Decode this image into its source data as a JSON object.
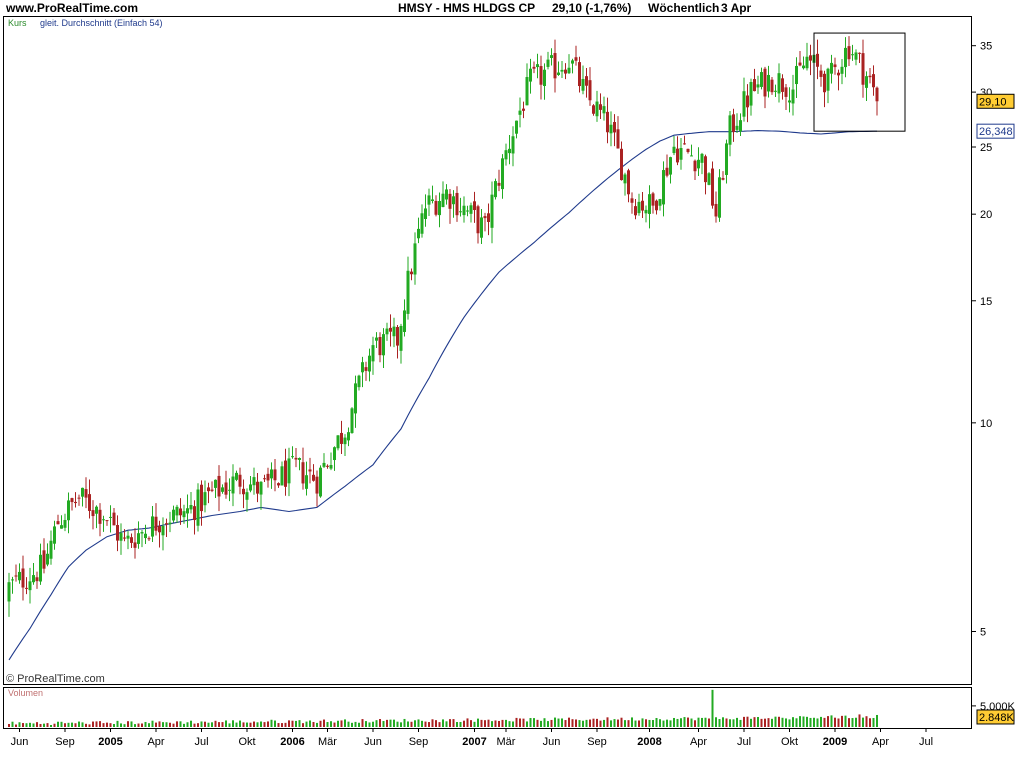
{
  "header": {
    "site": "www.ProRealTime.com",
    "title": "HMSY - HMS HLDGS CP",
    "price": "29,10 (-1,76%)",
    "period": "Wöchentlich",
    "date": "3 Apr"
  },
  "legend": {
    "kurs": "Kurs",
    "ma": "gleit. Durchschnitt (Einfach 54)",
    "copyright": "© ProRealTime.com",
    "volume": "Volumen"
  },
  "colors": {
    "up": "#22aa22",
    "down": "#aa2222",
    "ma": "#1f3a8c",
    "legend_kurs": "#2a8a2a",
    "legend_ma": "#1f3a8c",
    "volume_label": "#c07070",
    "highlight": "#ffcc33"
  },
  "price_labels": {
    "last": "29,10",
    "ma": "26,348"
  },
  "volume_labels": {
    "scale": "5.000K",
    "last": "2.848K"
  },
  "chart_data": {
    "type": "candlestick",
    "frequency": "weekly",
    "y_scale": "log",
    "ylim": [
      4.2,
      38.5
    ],
    "y_ticks": [
      5,
      10,
      15,
      20,
      25,
      30,
      35
    ],
    "x_ticks": [
      {
        "label": "Jun",
        "bold": false
      },
      {
        "label": "Sep",
        "bold": false
      },
      {
        "label": "2005",
        "bold": true
      },
      {
        "label": "Apr",
        "bold": false
      },
      {
        "label": "Jul",
        "bold": false
      },
      {
        "label": "Okt",
        "bold": false
      },
      {
        "label": "2006",
        "bold": true
      },
      {
        "label": "Mär",
        "bold": false
      },
      {
        "label": "Jun",
        "bold": false
      },
      {
        "label": "Sep",
        "bold": false
      },
      {
        "label": "2007",
        "bold": true
      },
      {
        "label": "Mär",
        "bold": false
      },
      {
        "label": "Jun",
        "bold": false
      },
      {
        "label": "Sep",
        "bold": false
      },
      {
        "label": "2008",
        "bold": true
      },
      {
        "label": "Apr",
        "bold": false
      },
      {
        "label": "Jul",
        "bold": false
      },
      {
        "label": "Okt",
        "bold": false
      },
      {
        "label": "2009",
        "bold": true
      },
      {
        "label": "Apr",
        "bold": false
      },
      {
        "label": "Jul",
        "bold": false
      }
    ],
    "x_tick_week_index": [
      3,
      16,
      29,
      42,
      55,
      68,
      81,
      91,
      104,
      117,
      133,
      142,
      155,
      168,
      183,
      197,
      210,
      223,
      236,
      249,
      262
    ],
    "anchors": {
      "week": [
        0,
        10,
        14,
        20,
        27,
        33,
        44,
        50,
        58,
        66,
        72,
        82,
        88,
        96,
        104,
        111,
        119,
        125,
        136,
        142,
        149,
        160,
        165,
        171,
        178,
        184,
        190,
        198,
        202,
        206,
        212,
        218,
        224,
        228,
        234,
        240,
        246,
        248
      ],
      "close": [
        5.8,
        6.2,
        7.2,
        7.8,
        7.4,
        6.7,
        7.3,
        7.4,
        7.9,
        8.3,
        8.0,
        8.6,
        8.3,
        9.8,
        12.9,
        13.2,
        20.5,
        21.5,
        19.0,
        24.5,
        31.0,
        33.5,
        29.5,
        27.0,
        21.0,
        20.5,
        25.0,
        24.0,
        20.0,
        26.5,
        30.0,
        31.5,
        30.5,
        33.5,
        31.0,
        35.0,
        31.0,
        29.1
      ]
    },
    "volume": {
      "scale_label_value": 5000000,
      "last_value": 2848000,
      "spike_week": 201,
      "spike_value": 8800000
    },
    "moving_average": {
      "period": 54,
      "week": [
        0,
        6,
        12,
        17,
        22,
        28,
        34,
        40,
        46,
        52,
        58,
        66,
        72,
        80,
        88,
        96,
        104,
        112,
        120,
        130,
        140,
        150,
        160,
        170,
        178,
        182,
        186,
        190,
        196,
        200,
        206,
        214,
        220,
        226,
        232,
        236,
        240,
        248
      ],
      "value": [
        4.55,
        5.05,
        5.65,
        6.2,
        6.55,
        6.85,
        7.0,
        7.05,
        7.15,
        7.25,
        7.35,
        7.45,
        7.55,
        7.45,
        7.55,
        8.1,
        8.7,
        9.8,
        11.6,
        14.2,
        16.5,
        18.2,
        20.1,
        22.3,
        24.0,
        24.8,
        25.5,
        26.0,
        26.2,
        26.3,
        26.3,
        26.4,
        26.35,
        26.2,
        26.1,
        26.2,
        26.3,
        26.348
      ]
    },
    "highlight_box": {
      "week_from": 230,
      "week_to": 256,
      "price_from": 26.348,
      "price_to": 36.5
    }
  }
}
